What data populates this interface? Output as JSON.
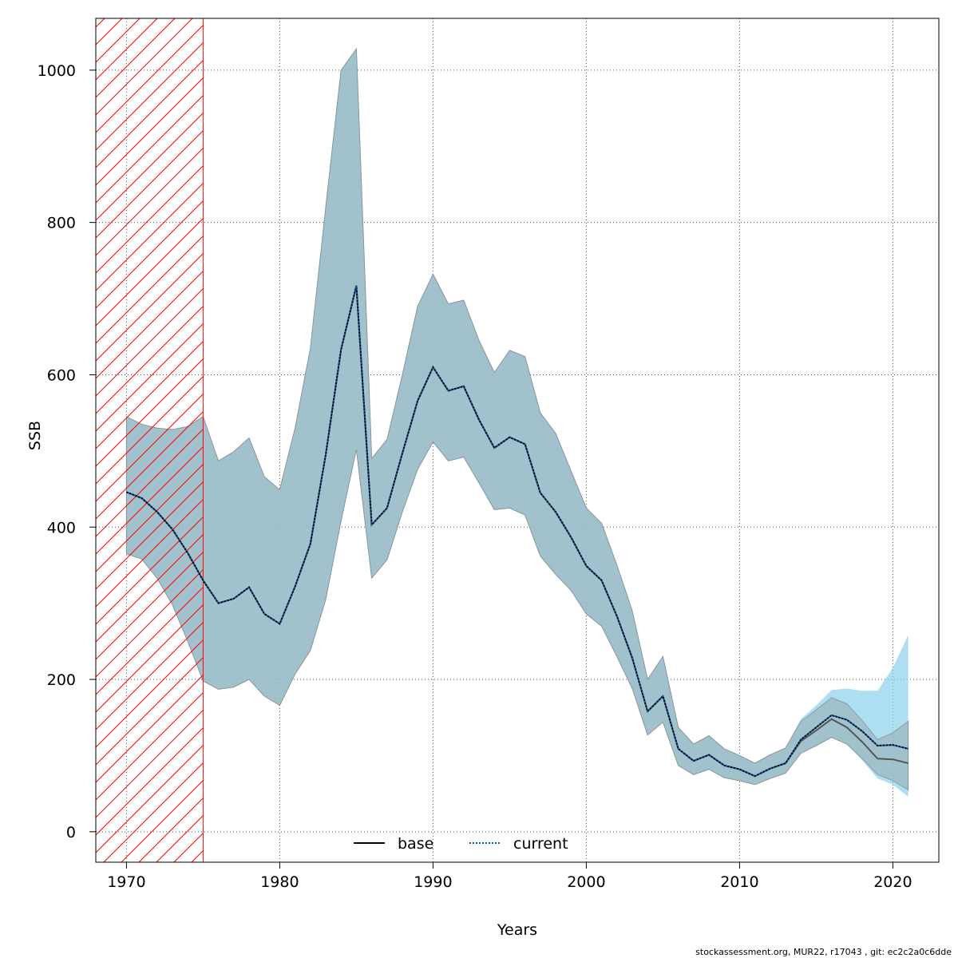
{
  "chart_data": {
    "type": "line",
    "xlabel": "Years",
    "ylabel": "SSB",
    "xlim": [
      1968,
      2023
    ],
    "ylim": [
      -40,
      1068
    ],
    "x_ticks": [
      1970,
      1980,
      1990,
      2000,
      2010,
      2020
    ],
    "y_ticks": [
      0,
      200,
      400,
      600,
      800,
      1000
    ],
    "grid": true,
    "legend_position": "bottom",
    "hatched_period": [
      1968,
      1975
    ],
    "x": [
      1970,
      1971,
      1972,
      1973,
      1974,
      1975,
      1976,
      1977,
      1978,
      1979,
      1980,
      1981,
      1982,
      1983,
      1984,
      1985,
      1986,
      1987,
      1988,
      1989,
      1990,
      1991,
      1992,
      1993,
      1994,
      1995,
      1996,
      1997,
      1998,
      1999,
      2000,
      2001,
      2002,
      2003,
      2004,
      2005,
      2006,
      2007,
      2008,
      2009,
      2010,
      2011,
      2012,
      2013,
      2014,
      2015,
      2016,
      2017,
      2018,
      2019,
      2020,
      2021
    ],
    "series": [
      {
        "name": "base",
        "line_style": "solid",
        "color": "#000000",
        "band_color": "#a6a6a6",
        "values": [
          446,
          438,
          420,
          397,
          366,
          330,
          300,
          306,
          321,
          286,
          273,
          322,
          378,
          495,
          633,
          717,
          403,
          425,
          497,
          566,
          610,
          579,
          585,
          541,
          504,
          518,
          509,
          445,
          420,
          387,
          349,
          330,
          283,
          228,
          158,
          178,
          109,
          93,
          101,
          87,
          82,
          73,
          83,
          90,
          119,
          133,
          148,
          137,
          118,
          96,
          95,
          90
        ],
        "lower": [
          365,
          358,
          333,
          298,
          250,
          198,
          187,
          190,
          200,
          178,
          166,
          207,
          238,
          305,
          408,
          502,
          333,
          357,
          420,
          476,
          512,
          487,
          492,
          458,
          423,
          425,
          416,
          362,
          338,
          317,
          286,
          270,
          230,
          188,
          127,
          144,
          87,
          75,
          82,
          71,
          67,
          62,
          70,
          77,
          103,
          113,
          124,
          115,
          96,
          75,
          67,
          55
        ],
        "upper": [
          545,
          535,
          530,
          528,
          532,
          545,
          487,
          499,
          517,
          466,
          449,
          530,
          635,
          820,
          1000,
          1028,
          490,
          515,
          600,
          690,
          732,
          693,
          698,
          645,
          603,
          632,
          624,
          550,
          523,
          474,
          425,
          405,
          350,
          290,
          200,
          230,
          137,
          115,
          126,
          109,
          100,
          90,
          101,
          110,
          145,
          160,
          176,
          168,
          146,
          121,
          130,
          145
        ]
      },
      {
        "name": "current",
        "line_style": "dotted",
        "color": "#0a5aa0",
        "band_color": "#87ceeb",
        "values": [
          446,
          438,
          420,
          397,
          366,
          330,
          300,
          306,
          321,
          286,
          273,
          322,
          378,
          495,
          633,
          717,
          403,
          425,
          497,
          566,
          610,
          579,
          585,
          541,
          504,
          518,
          509,
          445,
          420,
          387,
          349,
          330,
          283,
          228,
          158,
          178,
          109,
          93,
          101,
          87,
          82,
          73,
          83,
          90,
          121,
          137,
          153,
          147,
          132,
          113,
          114,
          109
        ],
        "lower": [
          365,
          358,
          333,
          298,
          250,
          198,
          187,
          190,
          200,
          178,
          166,
          207,
          238,
          305,
          408,
          502,
          333,
          357,
          420,
          476,
          512,
          487,
          492,
          458,
          423,
          425,
          416,
          362,
          338,
          317,
          286,
          270,
          230,
          188,
          127,
          144,
          87,
          75,
          82,
          71,
          67,
          62,
          70,
          77,
          103,
          113,
          124,
          115,
          94,
          70,
          62,
          46
        ],
        "upper": [
          545,
          535,
          530,
          528,
          532,
          545,
          487,
          499,
          517,
          466,
          449,
          530,
          635,
          820,
          1000,
          1028,
          490,
          515,
          600,
          690,
          732,
          693,
          698,
          645,
          603,
          632,
          624,
          550,
          523,
          474,
          425,
          405,
          350,
          290,
          200,
          230,
          137,
          115,
          126,
          109,
          100,
          90,
          101,
          110,
          148,
          166,
          186,
          188,
          185,
          185,
          215,
          258
        ]
      }
    ]
  },
  "footer": "stockassessment.org, MUR22, r17043 , git: ec2c2a0c6dde"
}
